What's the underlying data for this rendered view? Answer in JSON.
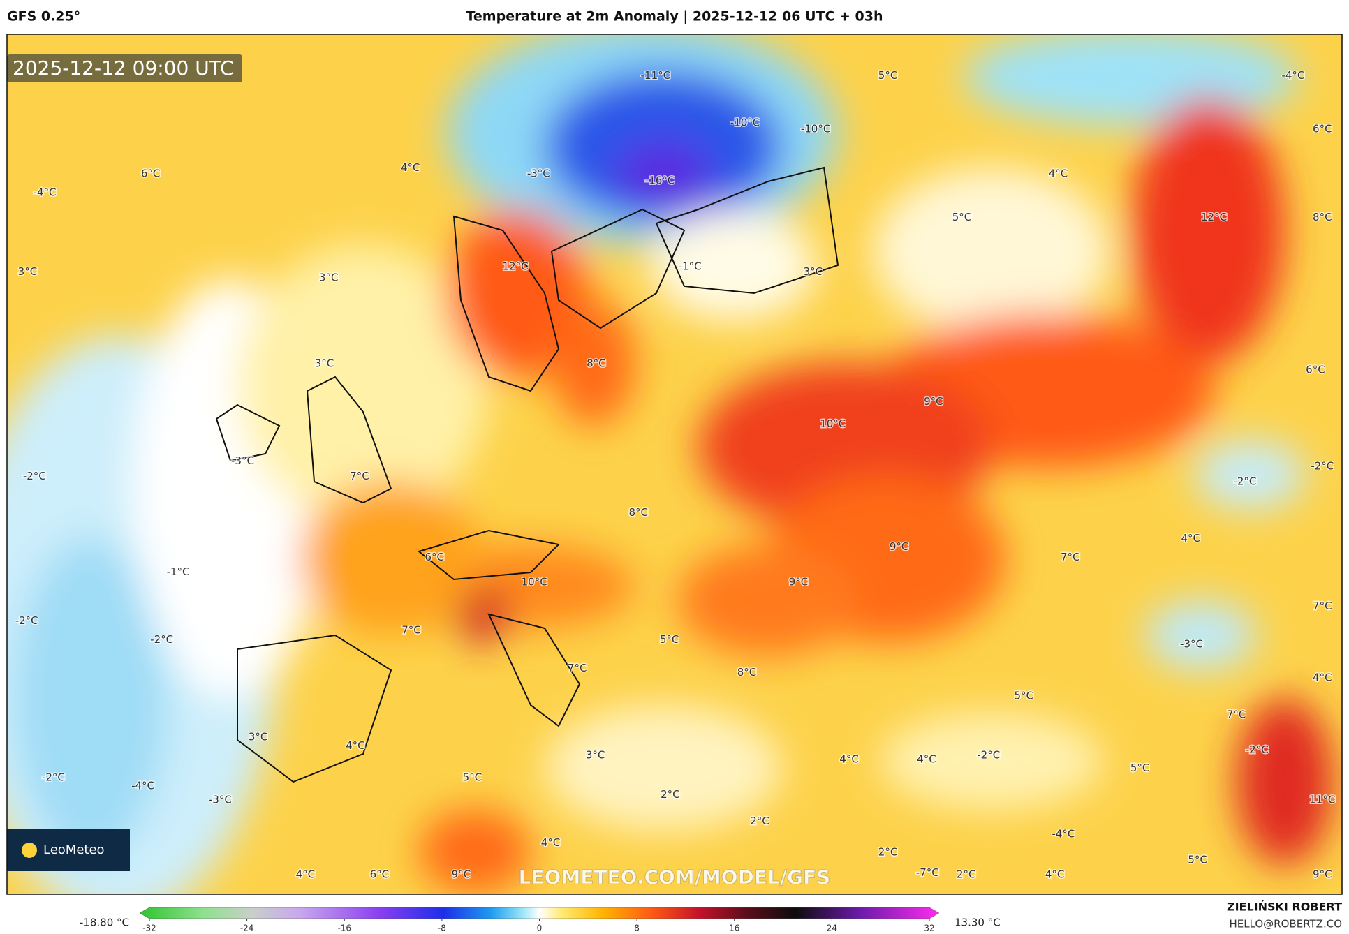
{
  "header": {
    "model": "GFS 0.25°",
    "title": "Temperature at 2m Anomaly | 2025-12-12 06 UTC + 03h"
  },
  "map": {
    "timestamp": "2025-12-12 09:00 UTC",
    "watermark": "LEOMETEO.COM/MODEL/GFS",
    "logo": "LeoMeteo",
    "labels": [
      "-11°C",
      "5°C",
      "-4°C",
      "-10°C",
      "-10°C",
      "6°C",
      "6°C",
      "4°C",
      "-3°C",
      "-16°C",
      "4°C",
      "-4°C",
      "5°C",
      "12°C",
      "8°C",
      "3°C",
      "3°C",
      "12°C",
      "-1°C",
      "3°C",
      "3°C",
      "8°C",
      "6°C",
      "9°C",
      "10°C",
      "-2°C",
      "-3°C",
      "7°C",
      "-2°C",
      "-2°C",
      "8°C",
      "4°C",
      "9°C",
      "6°C",
      "7°C",
      "-1°C",
      "10°C",
      "9°C",
      "-2°C",
      "7°C",
      "-2°C",
      "7°C",
      "5°C",
      "-3°C",
      "7°C",
      "8°C",
      "4°C",
      "5°C",
      "7°C",
      "3°C",
      "4°C",
      "3°C",
      "4°C",
      "4°C",
      "-2°C",
      "-2°C",
      "5°C",
      "-2°C",
      "5°C",
      "-4°C",
      "-3°C",
      "2°C",
      "11°C",
      "2°C",
      "4°C",
      "-4°C",
      "2°C",
      "5°C",
      "4°C",
      "6°C",
      "9°C",
      "-7°C",
      "2°C",
      "4°C",
      "9°C"
    ]
  },
  "colorbar": {
    "min_label": "-18.80 °C",
    "max_label": "13.30 °C",
    "range": [
      -32,
      32
    ],
    "ticks": [
      -32,
      -24,
      -16,
      -8,
      0,
      8,
      16,
      24,
      32
    ]
  },
  "footer": {
    "author": "ZIELIŃSKI ROBERT",
    "contact": "HELLO@ROBERTZ.CO"
  }
}
